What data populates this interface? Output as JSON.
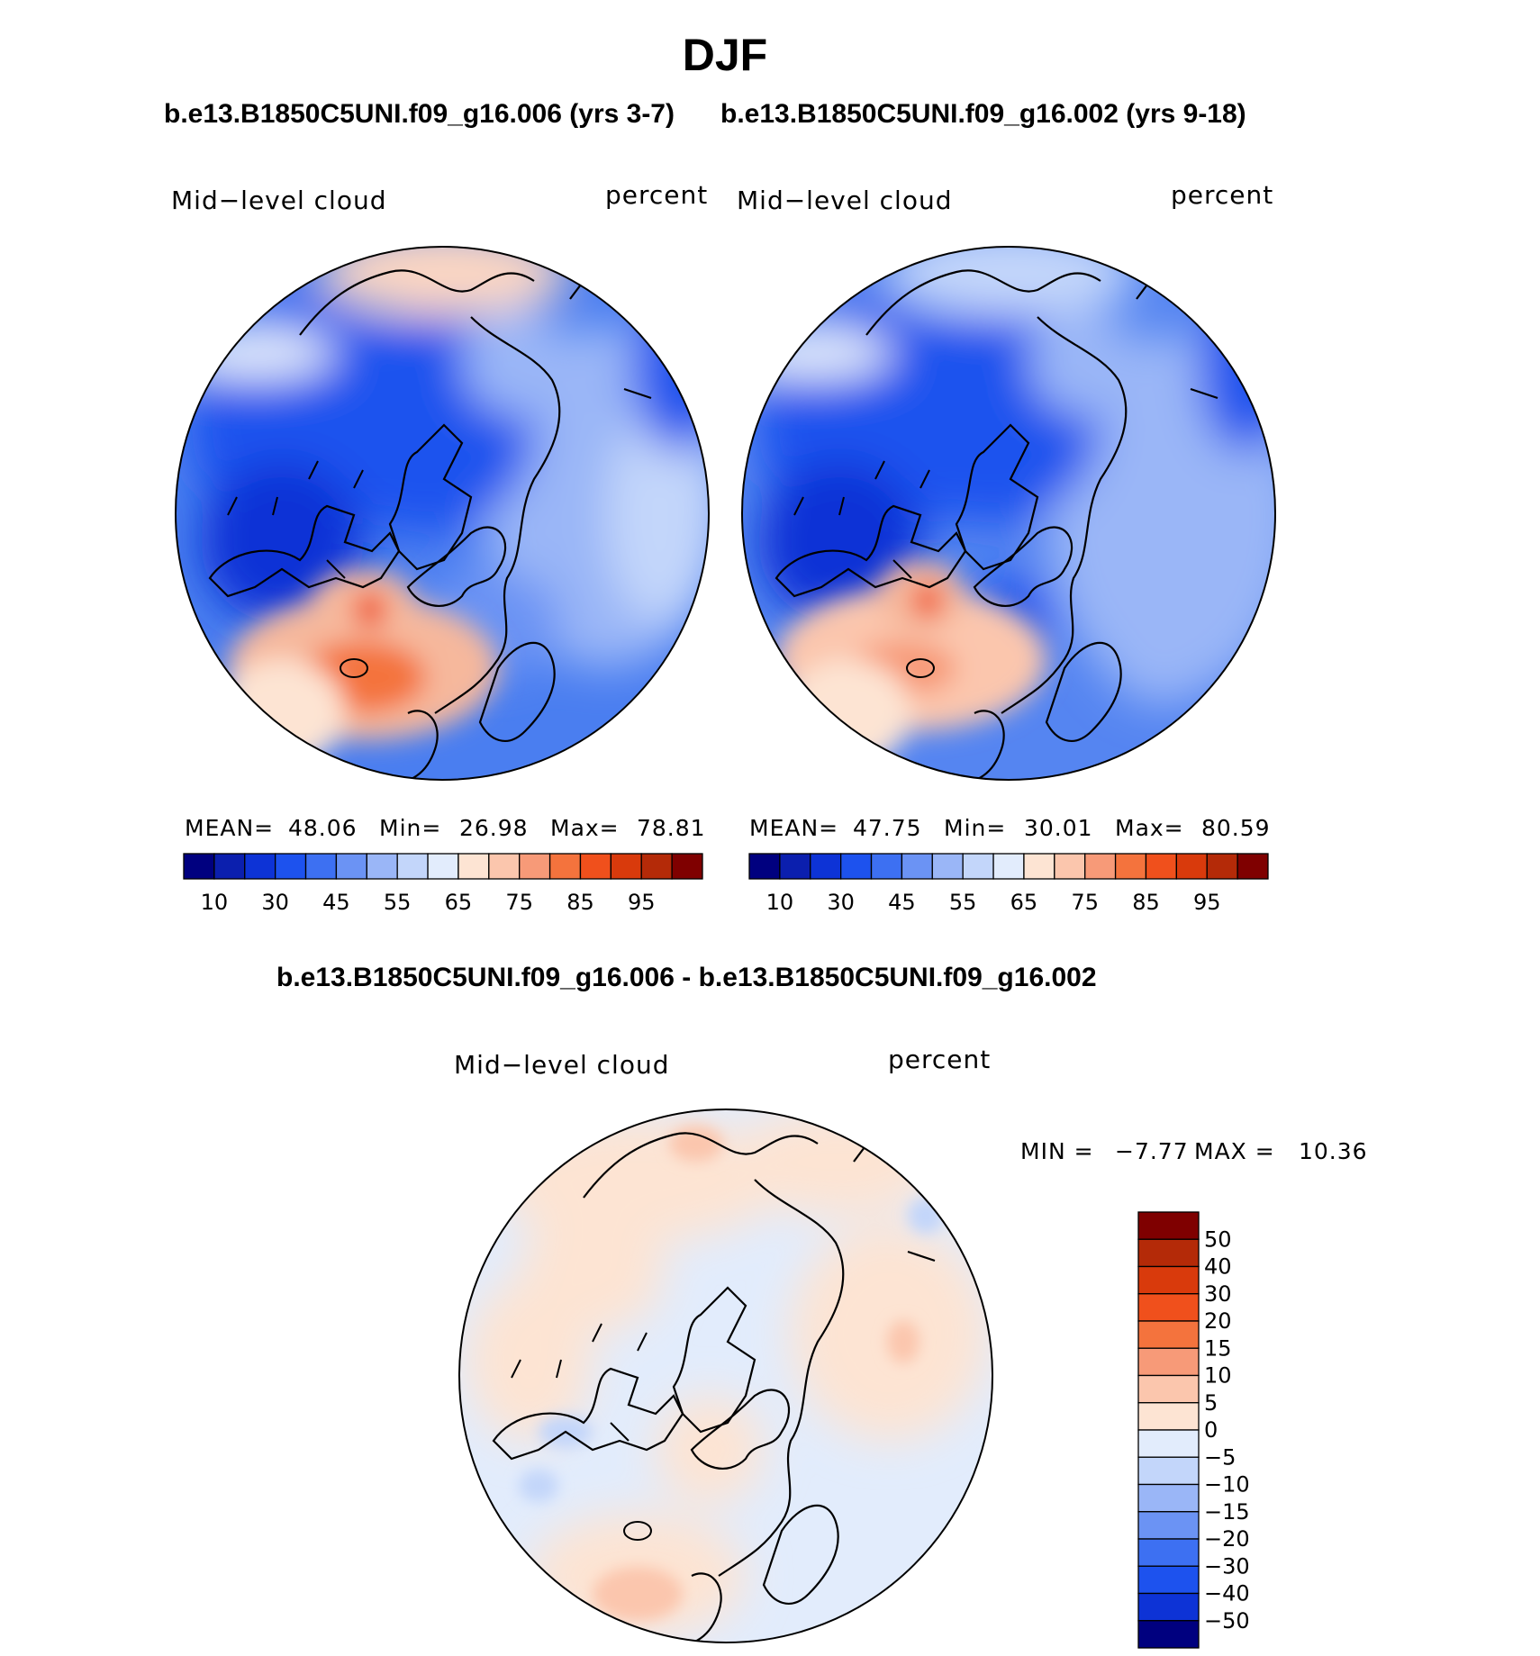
{
  "figure": {
    "season": "DJF",
    "case_a": "b.e13.B1850C5UNI.f09_g16.006 (yrs 3-7)",
    "case_b": "b.e13.B1850C5UNI.f09_g16.002 (yrs 9-18)",
    "diff_title": "b.e13.B1850C5UNI.f09_g16.006 - b.e13.B1850C5UNI.f09_g16.002"
  },
  "panel_a": {
    "variable": "Mid−level cloud",
    "units": "percent",
    "stats": {
      "mean_label": "MEAN=",
      "mean": "48.06",
      "min_label": "Min=",
      "min": "26.98",
      "max_label": "Max=",
      "max": "78.81"
    }
  },
  "panel_b": {
    "variable": "Mid−level cloud",
    "units": "percent",
    "stats": {
      "mean_label": "MEAN=",
      "mean": "47.75",
      "min_label": "Min=",
      "min": "30.01",
      "max_label": "Max=",
      "max": "80.59"
    }
  },
  "panel_diff": {
    "variable": "Mid−level cloud",
    "units": "percent",
    "stats": {
      "min_label": "MIN =",
      "min": "−7.77",
      "max_label": "MAX =",
      "max": "10.36"
    }
  },
  "colorbar_abs": {
    "tick_labels": [
      "10",
      "30",
      "45",
      "55",
      "65",
      "75",
      "85",
      "95"
    ],
    "colors": [
      "#00007f",
      "#0b1fae",
      "#0d33d6",
      "#1d52ee",
      "#3d70f2",
      "#6b93f4",
      "#9ab6f7",
      "#c3d6fa",
      "#e2ecfc",
      "#fde4d3",
      "#fbc6ad",
      "#f79a78",
      "#f4733d",
      "#f0501c",
      "#d93a0c",
      "#b42a08",
      "#7f0000"
    ]
  },
  "colorbar_diff": {
    "tick_labels": [
      "50",
      "40",
      "30",
      "20",
      "15",
      "10",
      "5",
      "0",
      "−5",
      "−10",
      "−15",
      "−20",
      "−30",
      "−40",
      "−50"
    ],
    "colors": [
      "#7f0000",
      "#b42a08",
      "#d93a0c",
      "#f0501c",
      "#f4733d",
      "#f79a78",
      "#fbc6ad",
      "#fde4d3",
      "#e2ecfc",
      "#c3d6fa",
      "#9ab6f7",
      "#6b93f4",
      "#3d70f2",
      "#1d52ee",
      "#0d33d6",
      "#00007f"
    ]
  }
}
